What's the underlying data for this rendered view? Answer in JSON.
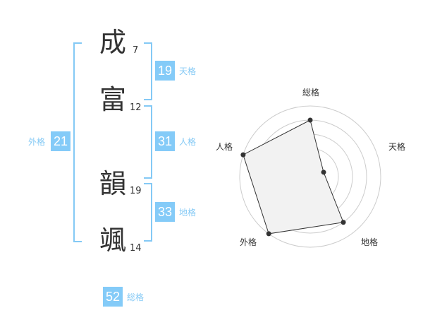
{
  "name_chars": [
    {
      "char": "成",
      "strokes": "7"
    },
    {
      "char": "富",
      "strokes": "12"
    },
    {
      "char": "韻",
      "strokes": "19"
    },
    {
      "char": "颯",
      "strokes": "14"
    }
  ],
  "fortunes": {
    "tenkaku": {
      "label": "天格",
      "value": "19"
    },
    "jinkaku": {
      "label": "人格",
      "value": "31"
    },
    "chikaku": {
      "label": "地格",
      "value": "33"
    },
    "gaikaku": {
      "label": "外格",
      "value": "21"
    },
    "soukaku": {
      "label": "総格",
      "value": "52"
    }
  },
  "colors": {
    "accent": "#84cbf8",
    "fill": "#f2f2f2",
    "line": "#333333",
    "ring": "#cccccc"
  },
  "chart_data": {
    "type": "radar",
    "axes": [
      "総格",
      "天格",
      "地格",
      "外格",
      "人格"
    ],
    "values": [
      4,
      1,
      4,
      5,
      5
    ],
    "range": [
      0,
      5
    ],
    "rings": 5
  }
}
